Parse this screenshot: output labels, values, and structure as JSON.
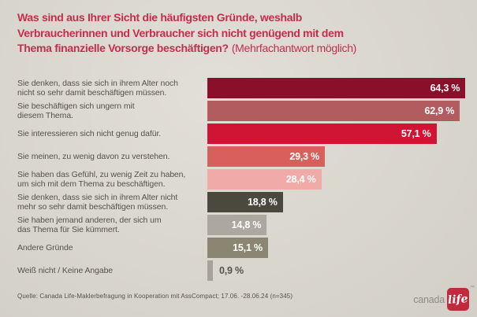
{
  "title": {
    "line1": "Was sind aus Ihrer Sicht die häufigsten Gründe, weshalb",
    "line2": "Verbraucherinnen und Verbraucher sich nicht genügend mit dem",
    "line3_bold": "Thema finanzielle Vorsorge beschäftigen?",
    "line3_regular": "(Mehrfachantwort möglich)"
  },
  "chart_data": {
    "type": "bar",
    "orientation": "horizontal",
    "title": "Was sind aus Ihrer Sicht die häufigsten Gründe, weshalb Verbraucherinnen und Verbraucher sich nicht genügend mit dem Thema finanzielle Vorsorge beschäftigen? (Mehrfachantwort möglich)",
    "categories": [
      "Sie denken, dass sie sich in ihrem Alter noch\nnicht so sehr damit beschäftigen müssen.",
      "Sie beschäftigen sich ungern mit\ndiesem Thema.",
      "Sie interessieren sich nicht genug dafür.",
      "Sie meinen, zu wenig davon zu verstehen.",
      "Sie haben das Gefühl, zu wenig Zeit zu haben,\num sich mit dem Thema zu beschäftigen.",
      "Sie denken, dass sie sich in ihrem Alter nicht\nmehr so sehr damit beschäftigen müssen.",
      "Sie haben jemand anderen, der sich um\ndas Thema für Sie kümmert.",
      "Andere Gründe",
      "Weiß nicht / Keine Angabe"
    ],
    "values": [
      64.3,
      62.9,
      57.1,
      29.3,
      28.4,
      18.8,
      14.8,
      15.1,
      0.9
    ],
    "value_labels": [
      "64,3 %",
      "62,9 %",
      "57,1 %",
      "29,3 %",
      "28,4 %",
      "18,8 %",
      "14,8 %",
      "15,1 %",
      "0,9 %"
    ],
    "value_suffix": " %",
    "decimal_separator": ",",
    "bar_colors": [
      "#8a0f2a",
      "#b25c5f",
      "#cf1434",
      "#d95f5d",
      "#f0aba8",
      "#4b493d",
      "#ada89f",
      "#8b8672",
      "#a8a399"
    ],
    "value_text_color_inside": "#ffffff",
    "value_text_color_outside": "#55534a",
    "xlim": [
      0,
      70
    ],
    "grid": false,
    "legend": false
  },
  "footer": {
    "source": "Quelle: Canada Life-Maklerbefragung in Kooperation mit AssCompact; 17.06. -28.06.24 (n=345)",
    "logo_wordmark": "canada",
    "logo_badge": "life",
    "logo_trademark": "™"
  },
  "colors": {
    "background": "#d9d6ce",
    "title_red": "#c42d4b",
    "label_text": "#55534a",
    "logo_red": "#c1293c"
  }
}
